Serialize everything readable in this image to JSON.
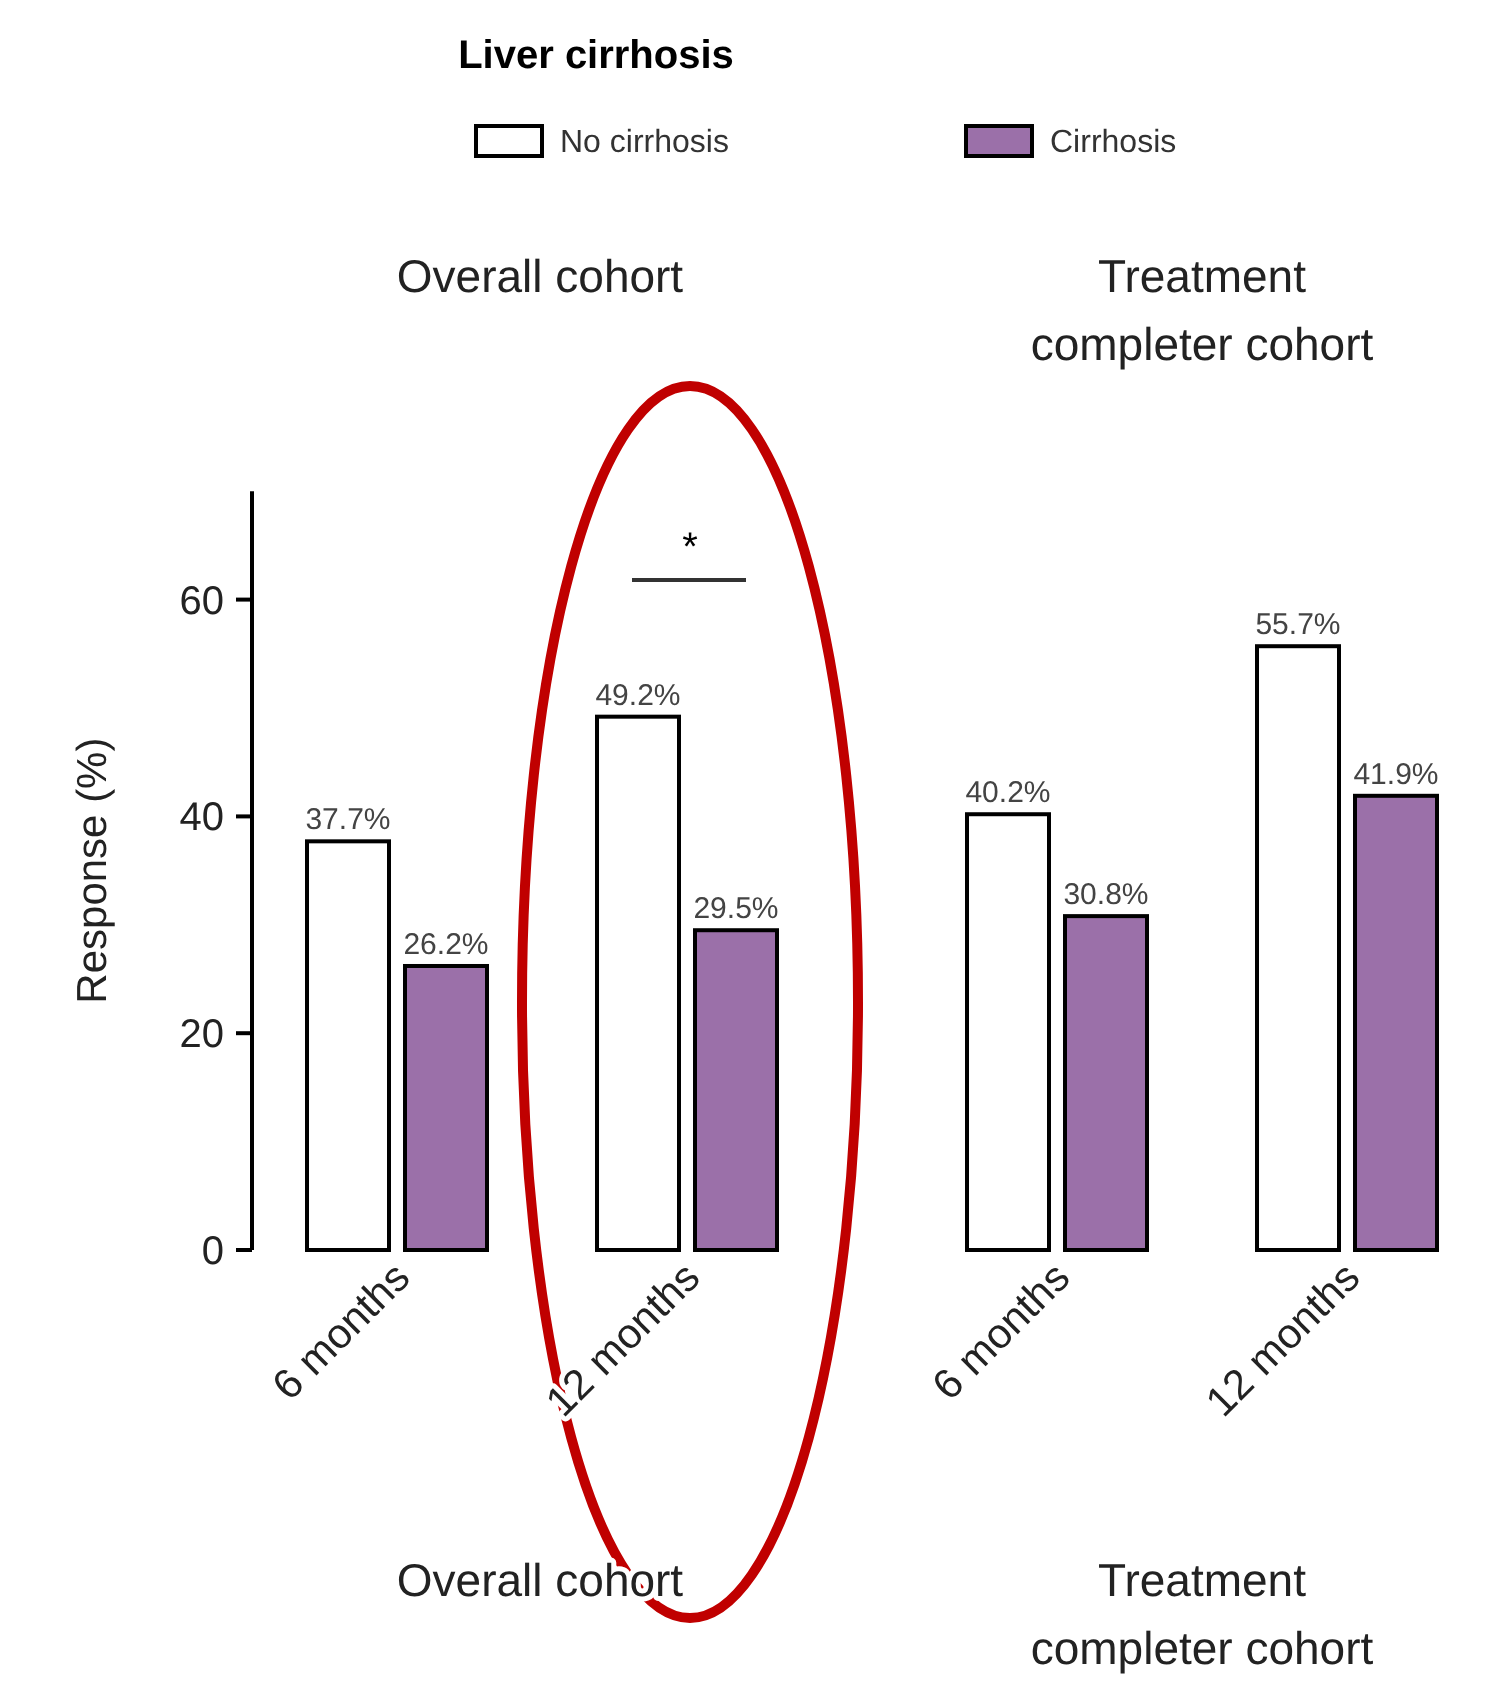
{
  "chart_data": {
    "type": "bar",
    "legend_title": "Liver cirrhosis",
    "ylabel": "Response (%)",
    "categories": [
      "6 months",
      "12 months",
      "6 months",
      "12 months"
    ],
    "series": [
      {
        "name": "No cirrhosis",
        "color": "#ffffff",
        "values": [
          37.7,
          49.2,
          40.2,
          55.7
        ],
        "value_labels": [
          "37.7%",
          "49.2%",
          "40.2%",
          "55.7%"
        ]
      },
      {
        "name": "Cirrhosis",
        "color": "#9b70a9",
        "values": [
          26.2,
          29.5,
          30.8,
          41.9
        ],
        "value_labels": [
          "26.2%",
          "29.5%",
          "30.8%",
          "41.9%"
        ]
      }
    ],
    "ylim": [
      0,
      70
    ],
    "yticks": [
      0,
      20,
      40,
      60
    ],
    "legend": "top",
    "annotations": [
      "*",
      "Overall cohort",
      "Treatment completer cohort",
      "Overall cohort",
      "Treatment completer cohort"
    ]
  }
}
